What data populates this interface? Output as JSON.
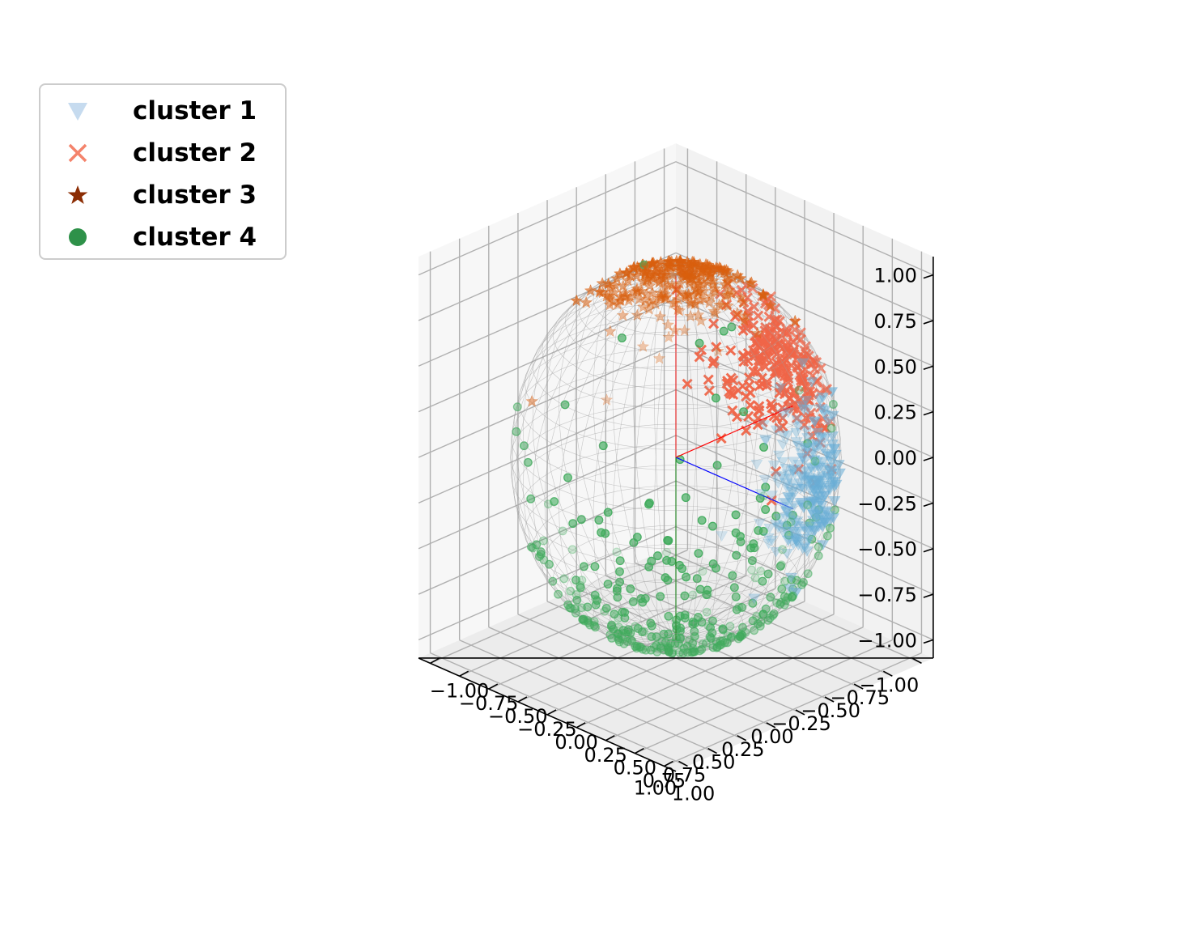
{
  "chart_data": {
    "type": "scatter",
    "projection": "3d",
    "title": "",
    "xlabel": "",
    "ylabel": "",
    "zlabel": "",
    "xlim": [
      -1.1,
      1.1
    ],
    "ylim": [
      -1.1,
      1.1
    ],
    "zlim": [
      -1.1,
      1.1
    ],
    "ticks": [
      -1.0,
      -0.75,
      -0.5,
      -0.25,
      0.0,
      0.25,
      0.5,
      0.75,
      1.0
    ],
    "tick_labels": [
      "−1.00",
      "−0.75",
      "−0.50",
      "−0.25",
      "0.00",
      "0.25",
      "0.50",
      "0.75",
      "1.00"
    ],
    "grid": true,
    "legend_position": "top-left",
    "sphere": {
      "radius": 1.0,
      "wireframe_color": "#9e9e9e"
    },
    "axis_lines": [
      {
        "color": "#ff0000",
        "to": [
          -1,
          0,
          0
        ]
      },
      {
        "color": "#0000ff",
        "to": [
          0,
          1,
          0
        ]
      },
      {
        "color": "#008000",
        "to": [
          0,
          0,
          -1
        ]
      },
      {
        "color": "#ff0000",
        "to": [
          0,
          0,
          1
        ]
      }
    ],
    "series": [
      {
        "name": "cluster 1",
        "marker": "triangle-down",
        "color": "#6aaed6",
        "legend_color": "#c6dbef",
        "center": [
          -0.17,
          0.98,
          0.06
        ],
        "spread": 0.34,
        "count": 260
      },
      {
        "name": "cluster 2",
        "marker": "x",
        "color": "#ef6548",
        "legend_color": "#f4836b",
        "center": [
          -0.98,
          -0.05,
          0.2
        ],
        "spread": 0.38,
        "count": 260
      },
      {
        "name": "cluster 3",
        "marker": "star",
        "color": "#d95f0e",
        "legend_color": "#8c2d04",
        "center": [
          0.0,
          0.0,
          1.0
        ],
        "spread": 0.4,
        "count": 260
      },
      {
        "name": "cluster 4",
        "marker": "circle",
        "color": "#41ab5d",
        "legend_color": "#2e9149",
        "center": [
          0.0,
          0.0,
          -1.0
        ],
        "spread": 0.9,
        "count": 330
      }
    ]
  }
}
